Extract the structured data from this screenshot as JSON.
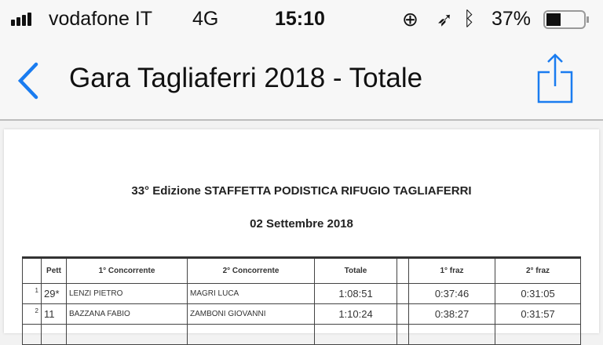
{
  "status_bar": {
    "carrier": "vodafone IT",
    "network": "4G",
    "time": "15:10",
    "battery": "37%",
    "battery_level": 0.37
  },
  "nav": {
    "title": "Gara Tagliaferri 2018 - Totale",
    "accent": "#1a7cf0"
  },
  "document": {
    "heading": "33° Edizione STAFFETTA PODISTICA RIFUGIO TAGLIAFERRI",
    "date": "02 Settembre 2018",
    "table": {
      "headers": [
        "",
        "Pett",
        "1° Concorrente",
        "2° Concorrente",
        "Totale",
        "",
        "1° fraz",
        "2° fraz"
      ],
      "rows": [
        {
          "rank": "1",
          "pett": "29*",
          "c1": "LENZI PIETRO",
          "c2": "MAGRI LUCA",
          "totale": "1:08:51",
          "f1": "0:37:46",
          "f2": "0:31:05"
        },
        {
          "rank": "2",
          "pett": "11",
          "c1": "BAZZANA FABIO",
          "c2": "ZAMBONI GIOVANNI",
          "totale": "1:10:24",
          "f1": "0:38:27",
          "f2": "0:31:57"
        }
      ]
    }
  }
}
